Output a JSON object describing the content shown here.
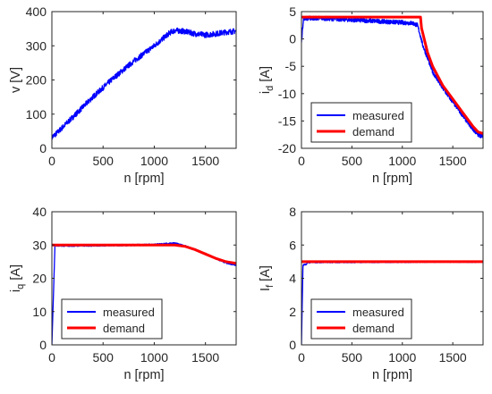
{
  "colors": {
    "measured": "#0000ff",
    "demand": "#ff0000",
    "axis": "#262626",
    "background": "#ffffff"
  },
  "chart_data": [
    {
      "id": "speed",
      "type": "line",
      "xlabel": "n [rpm]",
      "ylabel": "v [V]",
      "ylabel_base": "v",
      "ylabel_sub": "",
      "ylabel_unit": " [V]",
      "xlim": [
        0,
        1800
      ],
      "ylim": [
        0,
        400
      ],
      "xticks": [
        0,
        500,
        1000,
        1500
      ],
      "yticks": [
        0,
        100,
        200,
        300,
        400
      ],
      "grid": false,
      "legend": null,
      "series": [
        {
          "color": "#0000ff",
          "noise": 8,
          "x": [
            0,
            50,
            200,
            400,
            600,
            800,
            1000,
            1100,
            1150,
            1200,
            1300,
            1400,
            1500,
            1600,
            1700,
            1800
          ],
          "y": [
            32,
            45,
            90,
            150,
            205,
            255,
            300,
            325,
            338,
            345,
            342,
            335,
            332,
            335,
            340,
            343
          ]
        }
      ]
    },
    {
      "id": "id-current",
      "type": "line",
      "xlabel": "n [rpm]",
      "ylabel": "id [A]",
      "ylabel_base": "i",
      "ylabel_sub": "d",
      "ylabel_unit": " [A]",
      "xlim": [
        0,
        1800
      ],
      "ylim": [
        -20,
        5
      ],
      "xticks": [
        0,
        500,
        1000,
        1500
      ],
      "yticks": [
        -20,
        -15,
        -10,
        -5,
        0,
        5
      ],
      "grid": false,
      "legend": {
        "position": "bottom-left",
        "entries": [
          "measured",
          "demand"
        ]
      },
      "series": [
        {
          "name": "measured",
          "color": "#0000ff",
          "noise": 0.4,
          "x": [
            0,
            20,
            200,
            500,
            800,
            1100,
            1150,
            1180,
            1200,
            1250,
            1300,
            1400,
            1500,
            1600,
            1700,
            1750,
            1800
          ],
          "y": [
            -0.5,
            3.8,
            3.8,
            3.5,
            3.2,
            2.9,
            2.5,
            0.5,
            -1.0,
            -3.5,
            -6.0,
            -9.0,
            -11.5,
            -14.0,
            -16.5,
            -17.5,
            -17.8
          ]
        },
        {
          "name": "demand",
          "color": "#ff0000",
          "noise": 0,
          "x": [
            0,
            1180,
            1190,
            1250,
            1300,
            1400,
            1500,
            1600,
            1700,
            1750,
            1800
          ],
          "y": [
            4.0,
            4.0,
            2.0,
            -2.5,
            -5.0,
            -8.5,
            -11.0,
            -13.5,
            -16.0,
            -17.0,
            -17.3
          ]
        }
      ]
    },
    {
      "id": "iq-current",
      "type": "line",
      "xlabel": "n [rpm]",
      "ylabel": "iq [A]",
      "ylabel_base": "i",
      "ylabel_sub": "q",
      "ylabel_unit": " [A]",
      "xlim": [
        0,
        1800
      ],
      "ylim": [
        0,
        40
      ],
      "xticks": [
        0,
        500,
        1000,
        1500
      ],
      "yticks": [
        0,
        10,
        20,
        30,
        40
      ],
      "grid": false,
      "legend": {
        "position": "bottom-left",
        "entries": [
          "measured",
          "demand"
        ]
      },
      "series": [
        {
          "name": "measured",
          "color": "#0000ff",
          "noise": 0.25,
          "x": [
            0,
            30,
            45,
            60,
            200,
            500,
            800,
            1000,
            1200,
            1300,
            1400,
            1500,
            1600,
            1700,
            1800
          ],
          "y": [
            0,
            29.8,
            29.9,
            29.8,
            29.8,
            29.9,
            30.0,
            30.1,
            30.5,
            29.7,
            28.6,
            27.3,
            26.0,
            24.7,
            24.0
          ]
        },
        {
          "name": "demand",
          "color": "#ff0000",
          "noise": 0,
          "x": [
            0,
            200,
            500,
            800,
            1000,
            1200,
            1300,
            1400,
            1500,
            1600,
            1700,
            1800
          ],
          "y": [
            30,
            30,
            30,
            30,
            30,
            30,
            29.6,
            28.6,
            27.3,
            26.0,
            25.0,
            24.5
          ]
        }
      ]
    },
    {
      "id": "field-current",
      "type": "line",
      "xlabel": "n [rpm]",
      "ylabel": "If [A]",
      "ylabel_base": "I",
      "ylabel_sub": "f",
      "ylabel_unit": " [A]",
      "xlim": [
        0,
        1800
      ],
      "ylim": [
        0,
        8
      ],
      "xticks": [
        0,
        500,
        1000,
        1500
      ],
      "yticks": [
        0,
        2,
        4,
        6,
        8
      ],
      "grid": false,
      "legend": {
        "position": "bottom-left",
        "entries": [
          "measured",
          "demand"
        ]
      },
      "series": [
        {
          "name": "measured",
          "color": "#0000ff",
          "noise": 0.04,
          "x": [
            0,
            15,
            50,
            60,
            200,
            500,
            800,
            1000,
            1200,
            1400,
            1600,
            1800
          ],
          "y": [
            0,
            4.8,
            4.85,
            4.95,
            4.97,
            4.97,
            4.98,
            4.98,
            4.99,
            5.0,
            4.99,
            4.99
          ]
        },
        {
          "name": "demand",
          "color": "#ff0000",
          "noise": 0,
          "x": [
            0,
            1800
          ],
          "y": [
            5.0,
            5.0
          ]
        }
      ]
    }
  ]
}
